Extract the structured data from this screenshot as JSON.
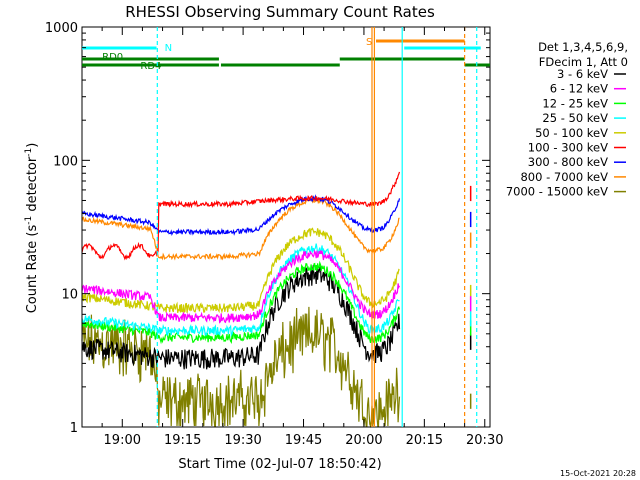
{
  "chart_data": {
    "type": "line",
    "title": "RHESSI Observing Summary Count Rates",
    "xlabel": "Start Time (02-Jul-07 18:50:42)",
    "ylabel_main": "Count Rate (s",
    "ylabel_exp1": "-1",
    "ylabel_mid": " detector",
    "ylabel_exp2": "-1",
    "ylabel_end": ")",
    "x_start_minutes": 18.7,
    "xlim_minutes": [
      0,
      101.3
    ],
    "x_ticks": [
      {
        "min": 10,
        "label": "19:00"
      },
      {
        "min": 25,
        "label": "19:15"
      },
      {
        "min": 40,
        "label": "19:30"
      },
      {
        "min": 55,
        "label": "19:45"
      },
      {
        "min": 70,
        "label": "20:00"
      },
      {
        "min": 85,
        "label": "20:15"
      },
      {
        "min": 100,
        "label": "20:30"
      }
    ],
    "y_scale": "log",
    "ylim": [
      1,
      1000
    ],
    "y_ticks": [
      {
        "v": 1,
        "label": "1"
      },
      {
        "v": 10,
        "label": "10"
      },
      {
        "v": 100,
        "label": "100"
      },
      {
        "v": 1000,
        "label": "1000"
      }
    ],
    "legend_header": [
      "Det 1,3,4,5,6,9,",
      "FDecim 1, Att 0"
    ],
    "legend_position": "right",
    "series": [
      {
        "name": "3 - 6 keV",
        "color": "#000000"
      },
      {
        "name": "6 - 12 keV",
        "color": "#ff00ff"
      },
      {
        "name": "12 - 25 keV",
        "color": "#00ff00"
      },
      {
        "name": "25 - 50 keV",
        "color": "#00ffff"
      },
      {
        "name": "50 - 100 keV",
        "color": "#cccc00"
      },
      {
        "name": "100 - 300 keV",
        "color": "#ff0000"
      },
      {
        "name": "300 - 800 keV",
        "color": "#0000ff"
      },
      {
        "name": "800 - 7000 keV",
        "color": "#ff8800"
      },
      {
        "name": "7000 - 15000 keV",
        "color": "#808000"
      }
    ],
    "flag_bars": {
      "rd0_label": "RD0",
      "rd4_label": "RD4",
      "n_label": "N",
      "s_label": "S"
    },
    "timestamp": "15-Oct-2021 20:28"
  }
}
